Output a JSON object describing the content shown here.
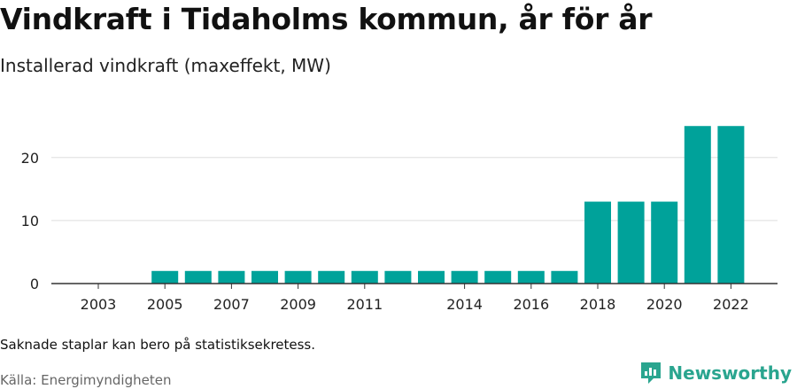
{
  "title": "Vindkraft i Tidaholms kommun, år för år",
  "subtitle": "Installerad vindkraft (maxeffekt, MW)",
  "note": "Saknade staplar kan bero på statistiksekretess.",
  "source": "Källa: Energimyndigheten",
  "brand": {
    "name": "Newsworthy",
    "icon": "newsworthy-logo-icon",
    "color": "#2aa58f"
  },
  "chart_data": {
    "type": "bar",
    "categories": [
      "2003",
      "2004",
      "2005",
      "2006",
      "2007",
      "2008",
      "2009",
      "2010",
      "2011",
      "2012",
      "2013",
      "2014",
      "2015",
      "2016",
      "2017",
      "2018",
      "2019",
      "2020",
      "2021",
      "2022"
    ],
    "x_tick_labels": [
      "2003",
      "2005",
      "2007",
      "2009",
      "2011",
      "2014",
      "2016",
      "2018",
      "2020",
      "2022"
    ],
    "values": [
      null,
      null,
      2,
      2,
      2,
      2,
      2,
      2,
      2,
      2,
      2,
      2,
      2,
      2,
      2,
      13,
      13,
      13,
      25,
      25
    ],
    "ylim": [
      0,
      27
    ],
    "y_ticks": [
      0,
      10,
      20
    ],
    "bar_color": "#00a29a",
    "grid": true,
    "xlabel": "",
    "ylabel": ""
  }
}
